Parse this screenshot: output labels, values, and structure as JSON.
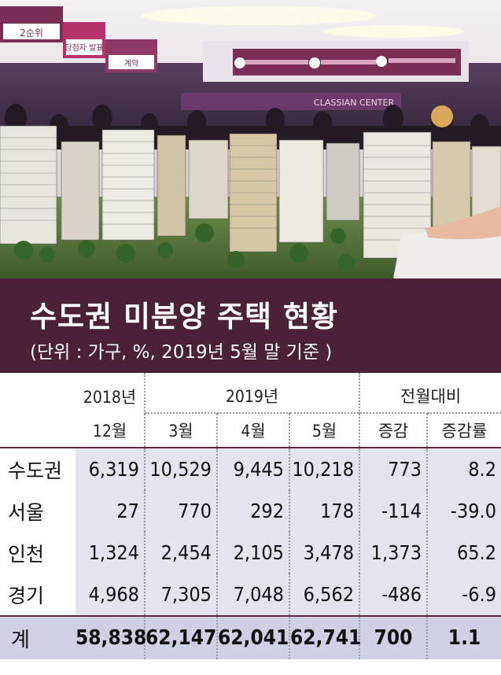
{
  "photo": {
    "signs": [
      "2순위",
      "당첨자 발표",
      "계약",
      "CLASSIAN CENTER"
    ]
  },
  "title": "수도권 미분양 주택 현황",
  "subtitle": "(단위 : 가구, %, 2019년 5월 말 기준 )",
  "header": {
    "year_2018": "2018년",
    "year_2019": "2019년",
    "prev_month": "전월대비",
    "month_12": "12월",
    "month_3": "3월",
    "month_4": "4월",
    "month_5": "5월",
    "change": "증감",
    "change_rate": "증감률"
  },
  "chart_data": {
    "type": "table",
    "title": "수도권 미분양 주택 현황",
    "subtitle": "(단위 : 가구, %, 2019년 5월 말 기준 )",
    "columns": [
      "2018년 12월",
      "2019년 3월",
      "2019년 4월",
      "2019년 5월",
      "전월대비 증감",
      "전월대비 증감률"
    ],
    "rows": [
      {
        "label": "수도권",
        "values": [
          "6,319",
          "10,529",
          "9,445",
          "10,218",
          "773",
          "8.2"
        ]
      },
      {
        "label": "서울",
        "values": [
          "27",
          "770",
          "292",
          "178",
          "-114",
          "-39.0"
        ]
      },
      {
        "label": "인천",
        "values": [
          "1,324",
          "2,454",
          "2,105",
          "3,478",
          "1,373",
          "65.2"
        ]
      },
      {
        "label": "경기",
        "values": [
          "4,968",
          "7,305",
          "7,048",
          "6,562",
          "-486",
          "-6.9"
        ]
      }
    ],
    "total": {
      "label": "계",
      "values": [
        "58,838",
        "62,147",
        "62,041",
        "62,741",
        "700",
        "1.1"
      ]
    }
  },
  "colors": {
    "title_band": "#4a2136",
    "row_shade": "#e4e3f0",
    "total_shade": "#cfcfe6"
  }
}
